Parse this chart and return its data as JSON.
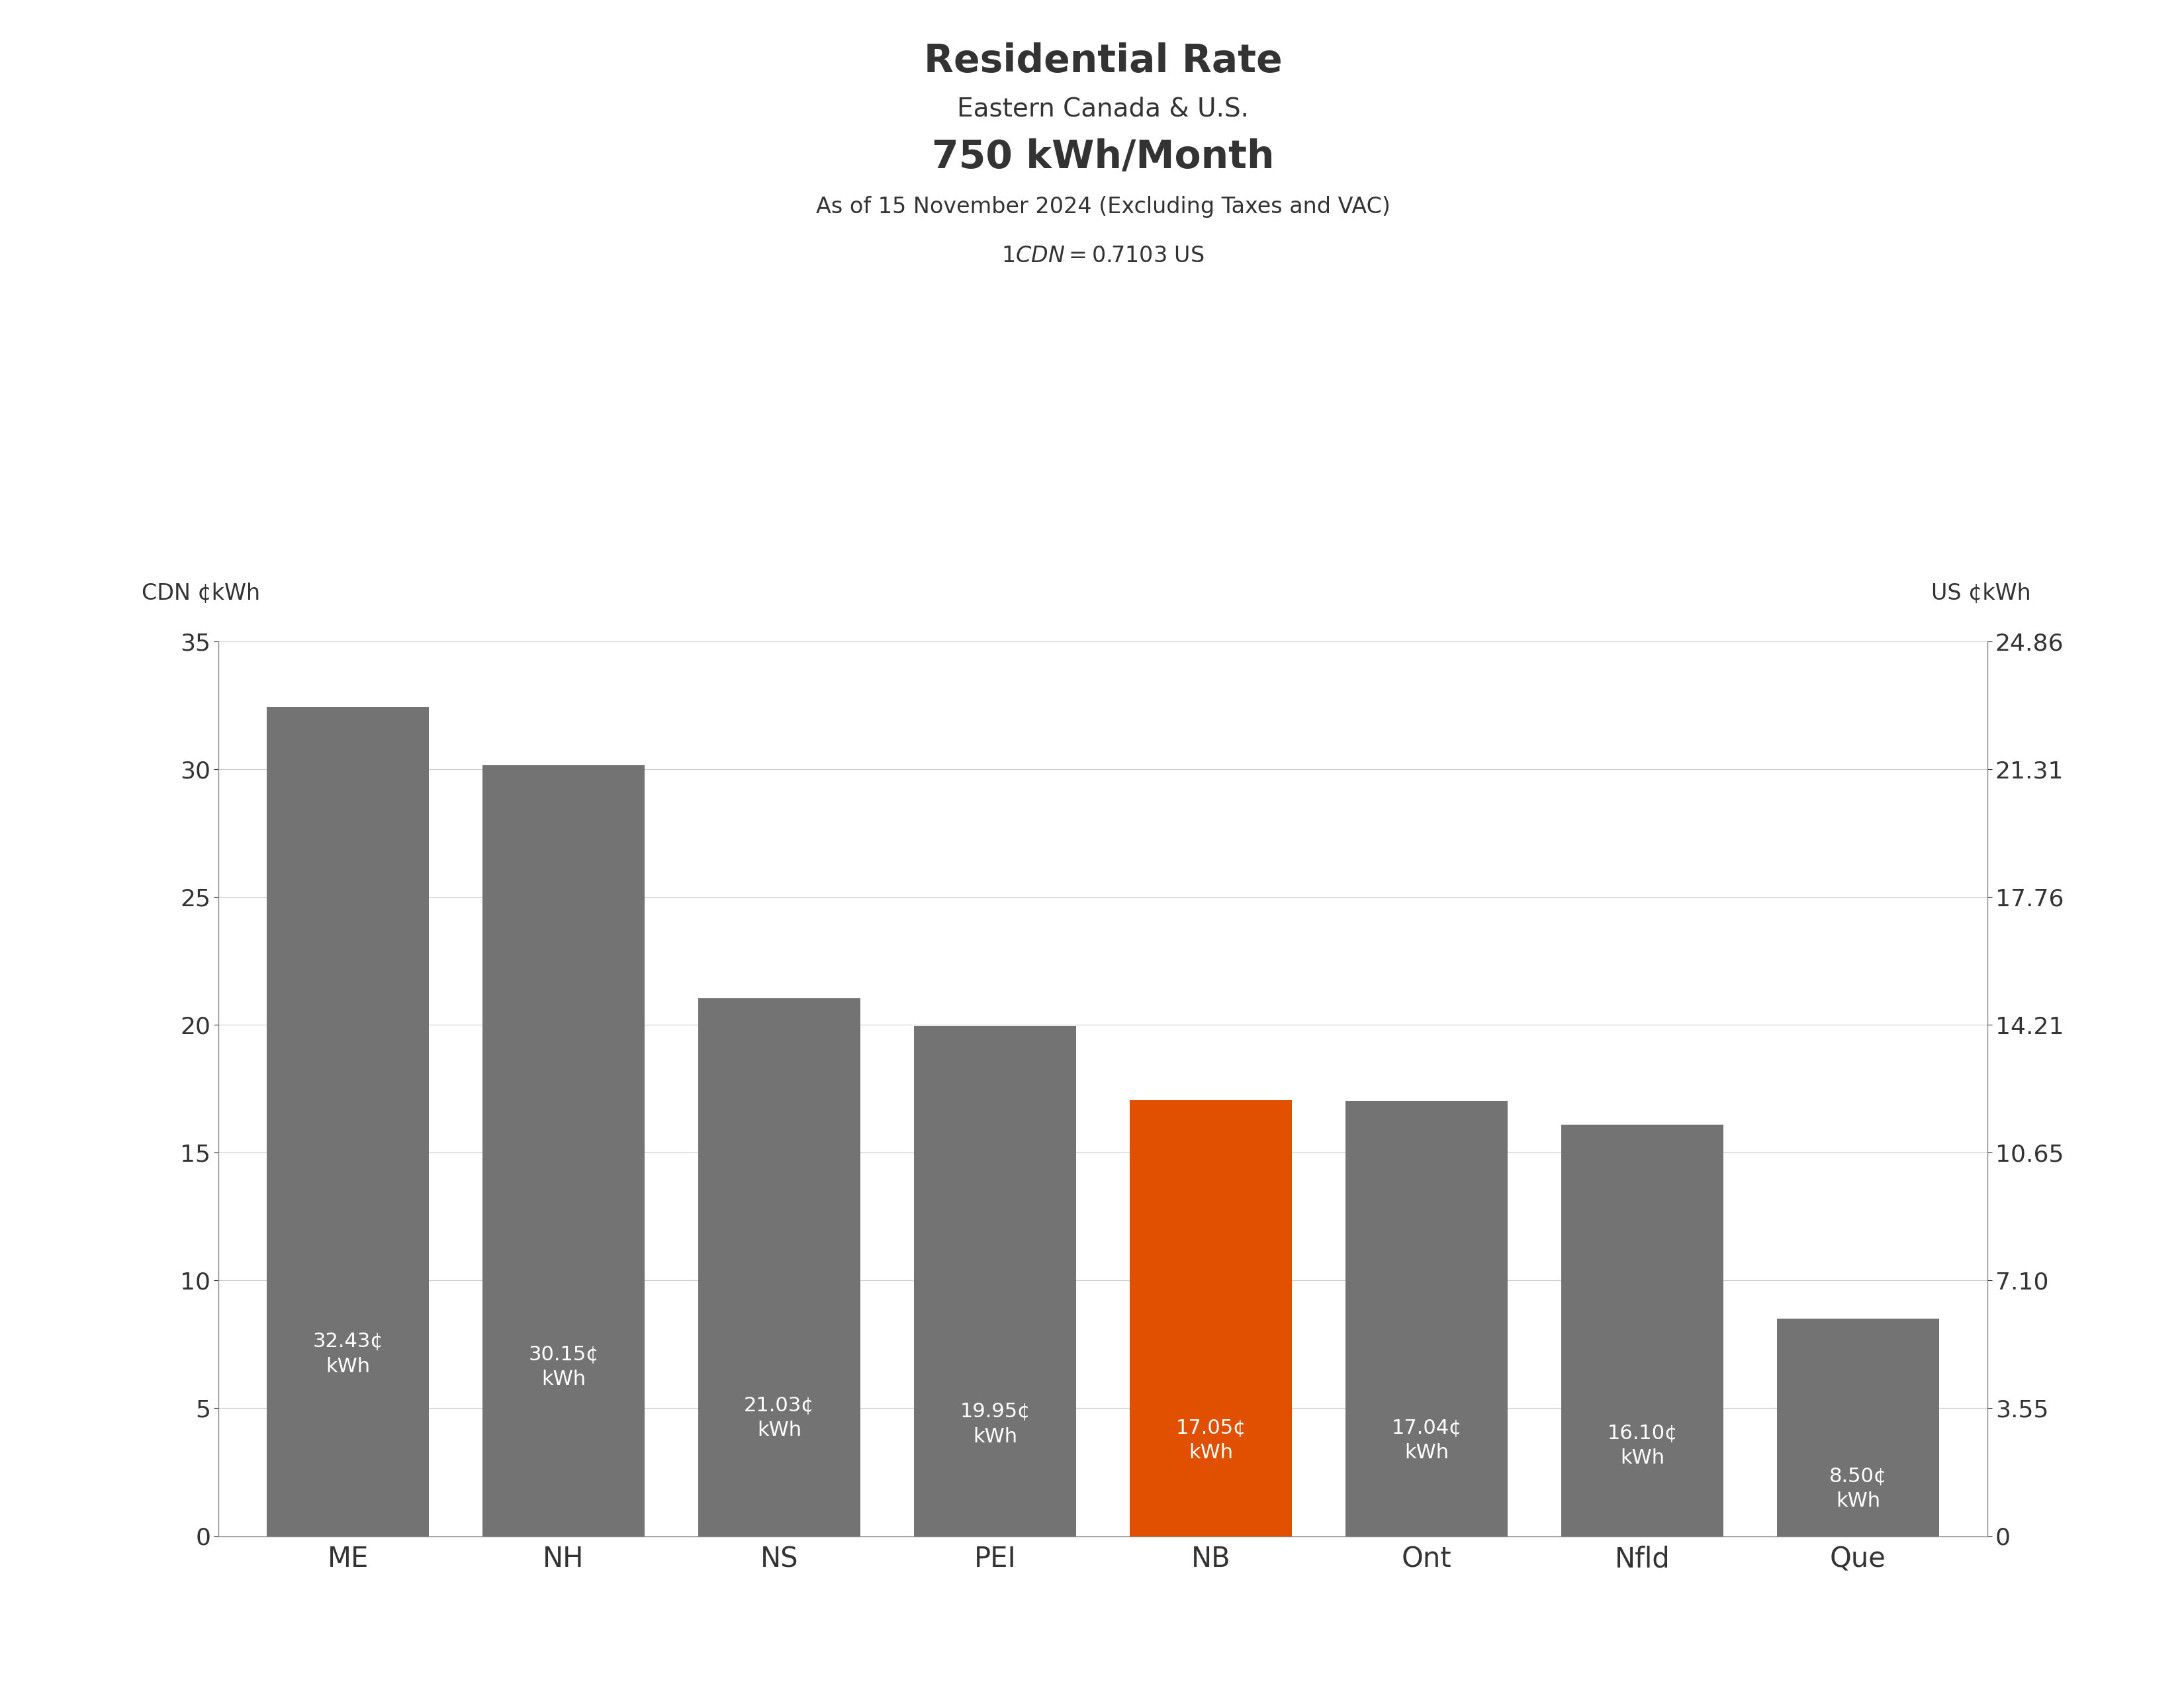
{
  "title_line1": "Residential Rate",
  "title_line2": "Eastern Canada & U.S.",
  "title_line3": "750 kWh/Month",
  "title_line4": "As of 15 November 2024 (Excluding Taxes and VAC)",
  "exchange_rate": "$1 CDN = $0.7103 US",
  "ylabel_left": "CDN ¢kWh",
  "ylabel_right": "US ¢kWh",
  "categories": [
    "ME",
    "NH",
    "NS",
    "PEI",
    "NB",
    "Ont",
    "Nfld",
    "Que"
  ],
  "values": [
    32.43,
    30.15,
    21.03,
    19.95,
    17.05,
    17.04,
    16.1,
    8.5
  ],
  "bar_colors": [
    "#737373",
    "#737373",
    "#737373",
    "#737373",
    "#E05000",
    "#737373",
    "#737373",
    "#737373"
  ],
  "bar_labels": [
    "32.43¢\nkWh",
    "30.15¢\nkWh",
    "21.03¢\nkWh",
    "19.95¢\nkWh",
    "17.05¢\nkWh",
    "17.04¢\nkWh",
    "16.10¢\nkWh",
    "8.50¢\nkWh"
  ],
  "ylim_left": [
    0,
    35
  ],
  "yticks_left": [
    0,
    5,
    10,
    15,
    20,
    25,
    30,
    35
  ],
  "yticks_right_labels": [
    "0",
    "3.55",
    "7.10",
    "10.65",
    "14.21",
    "17.76",
    "21.31",
    "24.86"
  ],
  "yticks_right_values": [
    0,
    5,
    10,
    15,
    20,
    25,
    30,
    35
  ],
  "background_color": "#ffffff",
  "text_color": "#333333",
  "bar_label_color": "#ffffff",
  "title1_fontsize": 42,
  "title2_fontsize": 28,
  "title3_fontsize": 42,
  "title4_fontsize": 24,
  "exchange_fontsize": 24,
  "axis_label_fontsize": 24,
  "tick_fontsize": 26,
  "bar_label_fontsize": 22,
  "xlabel_fontsize": 30
}
